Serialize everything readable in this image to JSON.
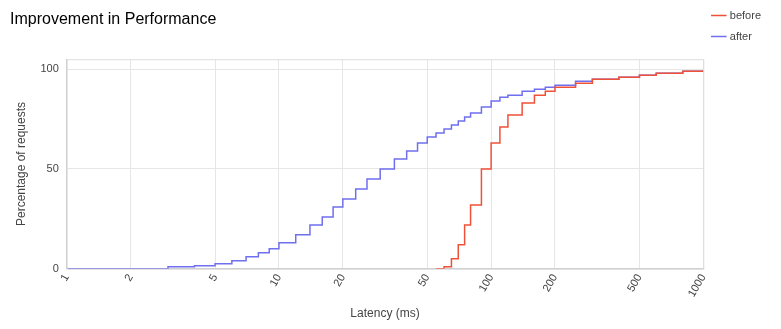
{
  "chart_data": {
    "type": "line",
    "title": "Improvement in Performance",
    "x_label": "Latency (ms)",
    "y_label": "Percentage of requests",
    "x": [
      1,
      2,
      3,
      4,
      5,
      6,
      7,
      8,
      9,
      10,
      12,
      14,
      16,
      18,
      20,
      23,
      26,
      30,
      35,
      40,
      45,
      50,
      55,
      60,
      65,
      70,
      75,
      80,
      90,
      100,
      110,
      120,
      140,
      160,
      180,
      200,
      250,
      300,
      400,
      500,
      600,
      800,
      1000
    ],
    "series": [
      {
        "name": "before",
        "color": "#ef5138",
        "line_style": "steps",
        "values": [
          null,
          null,
          null,
          null,
          null,
          null,
          null,
          null,
          null,
          null,
          null,
          null,
          null,
          null,
          null,
          null,
          null,
          null,
          null,
          null,
          null,
          null,
          0,
          1,
          5,
          12,
          22,
          32,
          50,
          63,
          71,
          77,
          83,
          87,
          89,
          91,
          93,
          95,
          96,
          97,
          98,
          99,
          99.5
        ]
      },
      {
        "name": "after",
        "color": "#6f6fef",
        "line_style": "steps",
        "values": [
          0,
          0,
          1,
          1.5,
          2.5,
          4,
          6,
          8,
          10,
          13,
          17,
          22,
          26,
          31,
          35,
          40,
          45,
          50,
          55,
          59,
          63,
          66,
          68,
          70,
          72,
          74,
          76,
          78,
          81,
          84,
          86,
          87,
          89,
          90,
          91,
          92,
          94,
          95,
          96,
          97,
          98,
          99,
          99.5
        ]
      }
    ],
    "log": "x",
    "xlim": [
      1,
      1000
    ],
    "xticks": [
      1,
      2,
      5,
      10,
      20,
      50,
      100,
      200,
      500,
      1000
    ],
    "ylim": [
      0,
      105
    ],
    "yticks": [
      0,
      50,
      100
    ],
    "grid": true,
    "legend": "right"
  }
}
